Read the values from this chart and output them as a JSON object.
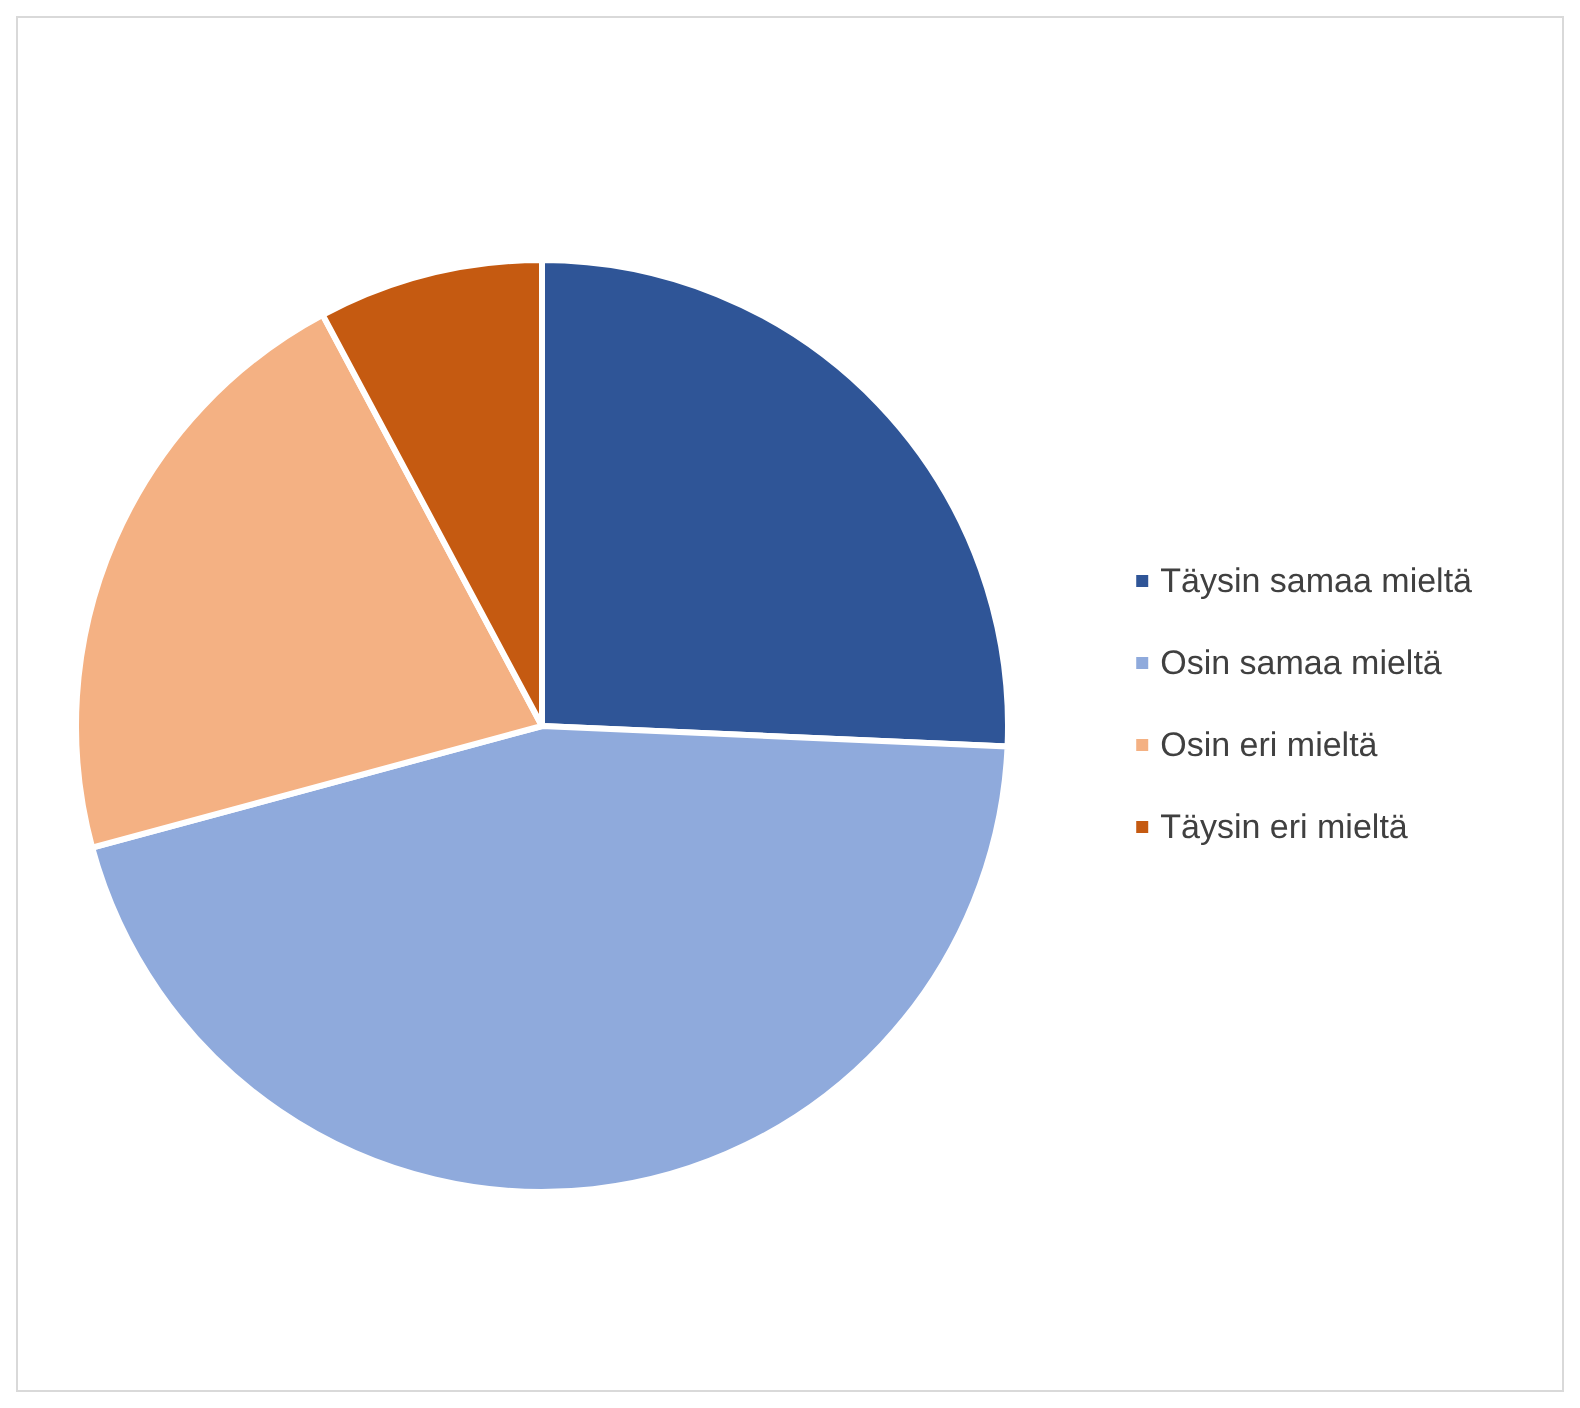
{
  "chart_data": {
    "type": "pie",
    "categories": [
      "Täysin samaa mieltä",
      "Osin samaa mieltä",
      "Osin eri mieltä",
      "Täysin eri mieltä"
    ],
    "values": [
      25.7,
      45.1,
      21.4,
      7.8
    ],
    "colors": [
      "#2f5597",
      "#8faadc",
      "#f4b183",
      "#c55a11"
    ],
    "legend": "right"
  }
}
